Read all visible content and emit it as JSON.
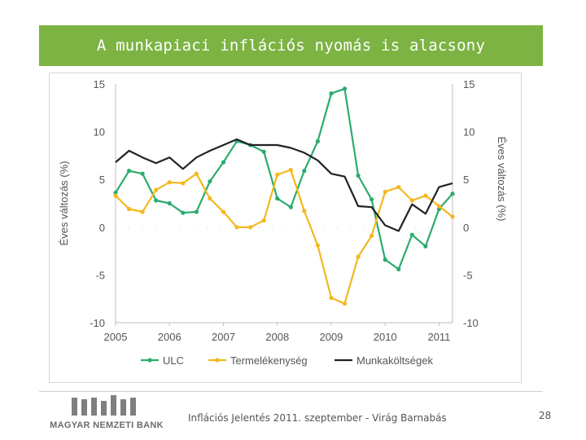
{
  "slide": {
    "title": "A munkapiaci inflációs nyomás is alacsony",
    "footer": "Inflációs Jelentés 2011. szeptember - Virág Barnabás",
    "page_number": "28",
    "logo_text": "MAGYAR NEMZETI BANK"
  },
  "colors": {
    "title_bg": "#7cb342",
    "ulc": "#2bab6e",
    "productivity": "#f2b81e",
    "labor_cost": "#222222"
  },
  "chart_data": {
    "type": "line",
    "ylabel": "Éves változás (%)",
    "y2label": "Éves változás (%)",
    "ylim": [
      -10,
      15
    ],
    "y2lim": [
      -10,
      15
    ],
    "yticks": [
      "15",
      "10",
      "5",
      "0",
      "-5",
      "-10"
    ],
    "y2ticks": [
      "15",
      "10",
      "5",
      "0",
      "-5",
      "-10"
    ],
    "xlim": [
      2005,
      2011.25
    ],
    "xticks": [
      "2005",
      "2006",
      "2007",
      "2008",
      "2009",
      "2010",
      "2011"
    ],
    "legend_position": "bottom",
    "series": [
      {
        "name": "ULC",
        "marker": true,
        "x": [
          2005.0,
          2005.25,
          2005.5,
          2005.75,
          2006.0,
          2006.25,
          2006.5,
          2006.75,
          2007.0,
          2007.25,
          2007.5,
          2007.75,
          2008.0,
          2008.25,
          2008.5,
          2008.75,
          2009.0,
          2009.25,
          2009.5,
          2009.75,
          2010.0,
          2010.25,
          2010.5,
          2010.75,
          2011.0,
          2011.25
        ],
        "y": [
          3.6,
          5.9,
          5.6,
          2.8,
          2.5,
          1.5,
          1.6,
          4.8,
          6.8,
          9.0,
          8.6,
          7.9,
          3.0,
          2.1,
          5.9,
          9.0,
          14.0,
          14.5,
          5.4,
          2.9,
          -3.4,
          -4.4,
          -0.8,
          -2.0,
          1.9,
          3.5
        ]
      },
      {
        "name": "Termelékenység",
        "marker": true,
        "x": [
          2005.0,
          2005.25,
          2005.5,
          2005.75,
          2006.0,
          2006.25,
          2006.5,
          2006.75,
          2007.0,
          2007.25,
          2007.5,
          2007.75,
          2008.0,
          2008.25,
          2008.5,
          2008.75,
          2009.0,
          2009.25,
          2009.5,
          2009.75,
          2010.0,
          2010.25,
          2010.5,
          2010.75,
          2011.0,
          2011.25
        ],
        "y": [
          3.3,
          1.9,
          1.6,
          3.9,
          4.7,
          4.6,
          5.6,
          3.0,
          1.6,
          0.0,
          0.0,
          0.7,
          5.5,
          6.0,
          1.7,
          -1.9,
          -7.4,
          -8.0,
          -3.1,
          -0.9,
          3.7,
          4.2,
          2.8,
          3.3,
          2.2,
          1.1
        ]
      },
      {
        "name": "Munkaköltségek",
        "marker": false,
        "x": [
          2005.0,
          2005.25,
          2005.5,
          2005.75,
          2006.0,
          2006.25,
          2006.5,
          2006.75,
          2007.0,
          2007.25,
          2007.5,
          2007.75,
          2008.0,
          2008.25,
          2008.5,
          2008.75,
          2009.0,
          2009.25,
          2009.5,
          2009.75,
          2010.0,
          2010.25,
          2010.5,
          2010.75,
          2011.0,
          2011.25
        ],
        "y": [
          6.8,
          8.0,
          7.3,
          6.7,
          7.3,
          6.1,
          7.3,
          8.0,
          8.6,
          9.2,
          8.6,
          8.6,
          8.6,
          8.3,
          7.8,
          7.0,
          5.6,
          5.3,
          2.2,
          2.1,
          0.2,
          -0.4,
          2.4,
          1.4,
          4.2,
          4.6
        ]
      }
    ]
  }
}
